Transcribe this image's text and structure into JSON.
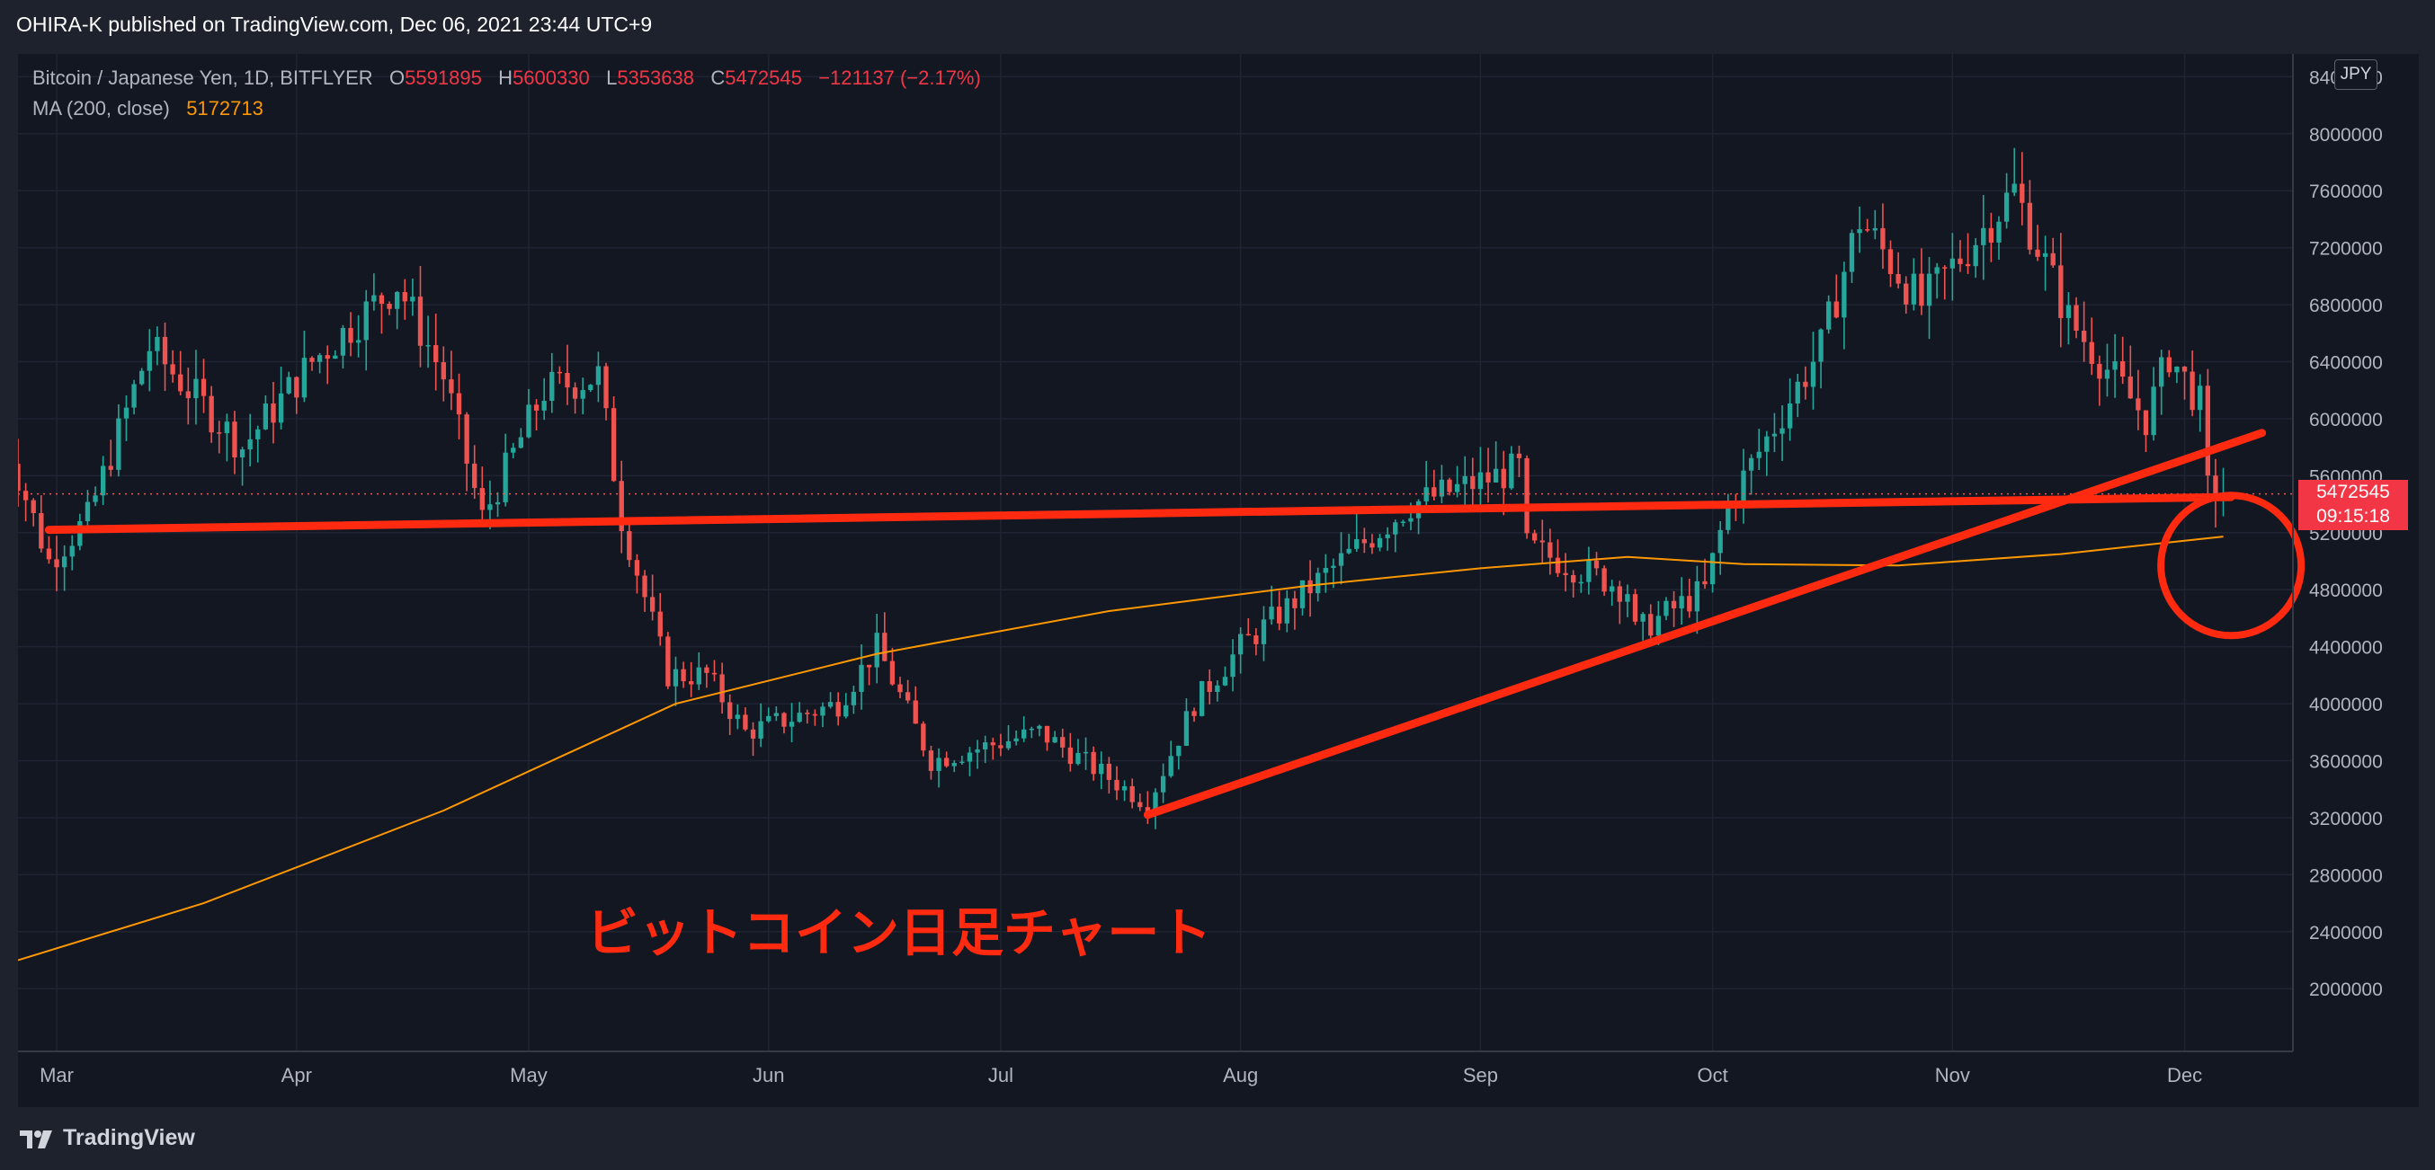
{
  "header": {
    "published": "OHIRA-K published on TradingView.com, Dec 06, 2021 23:44 UTC+9"
  },
  "legend": {
    "symbol": "Bitcoin / Japanese Yen, 1D, BITFLYER",
    "o_label": "O",
    "o": "5591895",
    "h_label": "H",
    "h": "5600330",
    "l_label": "L",
    "l": "5353638",
    "c_label": "C",
    "c": "5472545",
    "change": "−121137 (−2.17%)",
    "ma_label": "MA (200, close)",
    "ma_value": "5172713"
  },
  "currency": "JPY",
  "price_tag": {
    "price": "5472545",
    "countdown": "09:15:18"
  },
  "footer": {
    "brand": "TradingView"
  },
  "colors": {
    "up": "#26a69a",
    "down": "#ef5350",
    "ma": "#ff9800",
    "annotation": "#ff2a10",
    "bg": "#131722",
    "grid": "#1f2433"
  },
  "chart_data": {
    "type": "candlestick",
    "x_range": [
      "2021-02-24",
      "2021-12-15"
    ],
    "ylim": [
      1560000,
      8560000
    ],
    "y_ticks": [
      2000000,
      2400000,
      2800000,
      3200000,
      3600000,
      4000000,
      4400000,
      4800000,
      5200000,
      5600000,
      6000000,
      6400000,
      6800000,
      7200000,
      7600000,
      8000000,
      8400000
    ],
    "x_ticks": [
      {
        "label": "Mar",
        "date": "2021-03-01"
      },
      {
        "label": "Apr",
        "date": "2021-04-01"
      },
      {
        "label": "May",
        "date": "2021-05-01"
      },
      {
        "label": "Jun",
        "date": "2021-06-01"
      },
      {
        "label": "Jul",
        "date": "2021-07-01"
      },
      {
        "label": "Aug",
        "date": "2021-08-01"
      },
      {
        "label": "Sep",
        "date": "2021-09-01"
      },
      {
        "label": "Oct",
        "date": "2021-10-01"
      },
      {
        "label": "Nov",
        "date": "2021-11-01"
      },
      {
        "label": "Dec",
        "date": "2021-12-01"
      }
    ],
    "close_path": [
      [
        "2021-02-22",
        5900000
      ],
      [
        "2021-02-28",
        5000000
      ],
      [
        "2021-03-05",
        5300000
      ],
      [
        "2021-03-13",
        6500000
      ],
      [
        "2021-03-25",
        5800000
      ],
      [
        "2021-04-03",
        6400000
      ],
      [
        "2021-04-14",
        6950000
      ],
      [
        "2021-04-20",
        6300000
      ],
      [
        "2021-04-25",
        5300000
      ],
      [
        "2021-05-03",
        6200000
      ],
      [
        "2021-05-10",
        6300000
      ],
      [
        "2021-05-13",
        5300000
      ],
      [
        "2021-05-19",
        4200000
      ],
      [
        "2021-05-24",
        4200000
      ],
      [
        "2021-05-29",
        3800000
      ],
      [
        "2021-06-10",
        4000000
      ],
      [
        "2021-06-15",
        4400000
      ],
      [
        "2021-06-22",
        3600000
      ],
      [
        "2021-07-06",
        3800000
      ],
      [
        "2021-07-20",
        3300000
      ],
      [
        "2021-07-26",
        4000000
      ],
      [
        "2021-08-01",
        4400000
      ],
      [
        "2021-08-14",
        5000000
      ],
      [
        "2021-08-23",
        5400000
      ],
      [
        "2021-09-06",
        5650000
      ],
      [
        "2021-09-07",
        5100000
      ],
      [
        "2021-09-20",
        4800000
      ],
      [
        "2021-09-21",
        4500000
      ],
      [
        "2021-09-30",
        4800000
      ],
      [
        "2021-10-03",
        5400000
      ],
      [
        "2021-10-15",
        6500000
      ],
      [
        "2021-10-20",
        7400000
      ],
      [
        "2021-10-28",
        6800000
      ],
      [
        "2021-11-09",
        7600000
      ],
      [
        "2021-11-16",
        6700000
      ],
      [
        "2021-11-26",
        6000000
      ],
      [
        "2021-11-29",
        6450000
      ],
      [
        "2021-12-03",
        6100000
      ],
      [
        "2021-12-04",
        5500000
      ],
      [
        "2021-12-06",
        5472545
      ]
    ],
    "ma": {
      "name": "MA (200, close)",
      "points": [
        [
          "2021-02-24",
          2200000
        ],
        [
          "2021-03-20",
          2600000
        ],
        [
          "2021-04-20",
          3250000
        ],
        [
          "2021-05-20",
          4000000
        ],
        [
          "2021-06-15",
          4350000
        ],
        [
          "2021-07-15",
          4650000
        ],
        [
          "2021-08-10",
          4830000
        ],
        [
          "2021-09-01",
          4950000
        ],
        [
          "2021-09-20",
          5030000
        ],
        [
          "2021-10-05",
          4980000
        ],
        [
          "2021-10-25",
          4970000
        ],
        [
          "2021-11-15",
          5050000
        ],
        [
          "2021-12-06",
          5172713
        ]
      ]
    },
    "last_price": 5472545,
    "annotations": {
      "horizontal_line": [
        [
          "2021-02-28",
          5220000
        ],
        [
          "2021-12-07",
          5450000
        ]
      ],
      "trend_line": [
        [
          "2021-07-20",
          3220000
        ],
        [
          "2021-12-11",
          5900000
        ]
      ],
      "circle_center": [
        "2021-12-07",
        4970000
      ],
      "text": "ビットコイン日足チャート"
    }
  }
}
